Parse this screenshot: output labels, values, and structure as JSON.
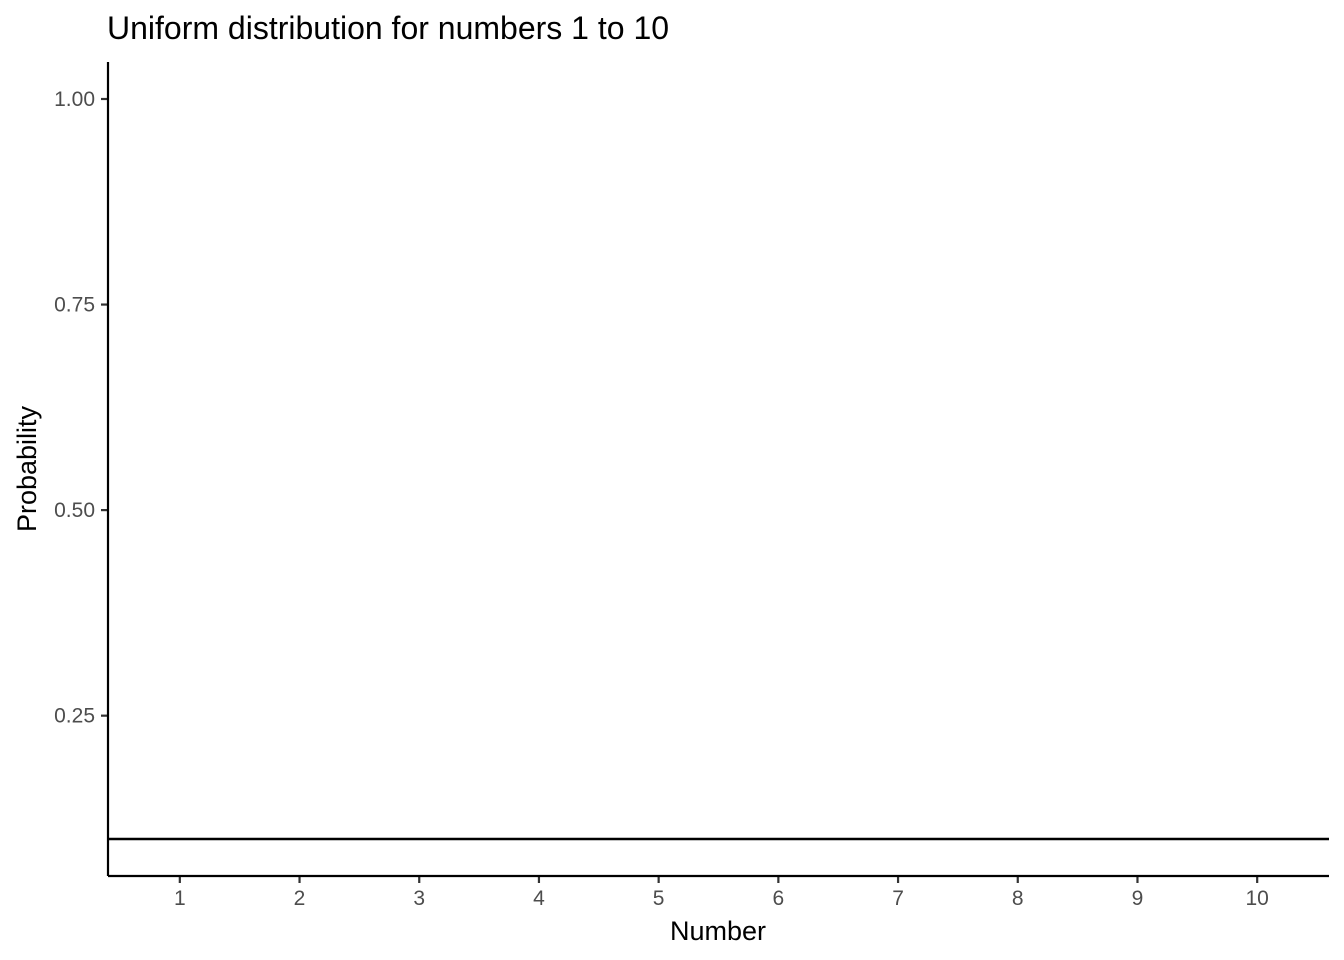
{
  "chart_data": {
    "type": "line",
    "title": "Uniform distribution for numbers 1 to 10",
    "xlabel": "Number",
    "ylabel": "Probability",
    "x": [
      1,
      2,
      3,
      4,
      5,
      6,
      7,
      8,
      9,
      10
    ],
    "x_tick_labels": [
      "1",
      "2",
      "3",
      "4",
      "5",
      "6",
      "7",
      "8",
      "9",
      "10"
    ],
    "y_ticks": [
      0.25,
      0.5,
      0.75,
      1.0
    ],
    "y_tick_labels": [
      "0.25",
      "0.50",
      "0.75",
      "1.00"
    ],
    "xlim": [
      0.4,
      10.6
    ],
    "ylim": [
      0.055,
      1.045
    ],
    "series": [
      {
        "values": [
          0.1,
          0.1,
          0.1,
          0.1,
          0.1,
          0.1,
          0.1,
          0.1,
          0.1,
          0.1
        ]
      }
    ],
    "line_spans_full_width": true,
    "grid": false,
    "legend": "none",
    "colors": {
      "line": "#000000",
      "axis": "#000000",
      "tick_label": "#4d4d4d"
    }
  }
}
